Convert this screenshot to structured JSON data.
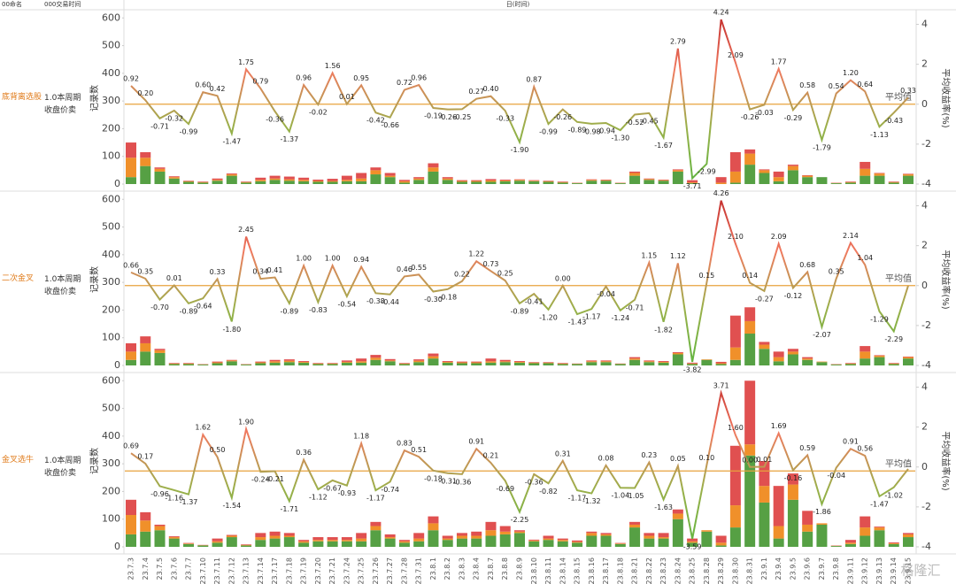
{
  "header": {
    "name_col": "00命名",
    "time_col": "000交易时间",
    "x_title": "日(时间)",
    "watermark": "格隆汇"
  },
  "chart_data": [
    {
      "type": "combo",
      "label": "底背离选股",
      "sublabel": [
        "1.0本周期",
        "收盘价卖"
      ],
      "y_label": "记录数",
      "y2_label": "平均收益率(%)",
      "ylim": [
        0,
        620
      ],
      "yticks": [
        0,
        100,
        200,
        300,
        400,
        500,
        600
      ],
      "y2lim": [
        -4,
        4.6
      ],
      "y2ticks": [
        -4,
        -2,
        0,
        2,
        4
      ],
      "ref_line": {
        "value": 0,
        "label": "平均值",
        "color": "#e8a33d"
      },
      "line_gradient": [
        "#c0282a",
        "#f07a60",
        "#9ab04a",
        "#5fb53f"
      ],
      "bars": [
        {
          "color": "#56a044",
          "values": [
            25,
            65,
            45,
            20,
            8,
            5,
            12,
            30,
            5,
            10,
            15,
            12,
            10,
            8,
            8,
            10,
            10,
            35,
            25,
            5,
            15,
            45,
            15,
            8,
            8,
            8,
            10,
            12,
            10,
            8,
            5,
            3,
            12,
            12,
            3,
            30,
            15,
            12,
            45,
            3,
            0,
            0,
            5,
            70,
            40,
            10,
            50,
            25,
            25,
            3,
            5,
            30,
            30,
            5,
            30
          ]
        },
        {
          "color": "#f0902a",
          "values": [
            70,
            30,
            10,
            5,
            2,
            2,
            3,
            5,
            2,
            5,
            5,
            5,
            5,
            3,
            3,
            5,
            10,
            15,
            5,
            5,
            5,
            15,
            5,
            3,
            3,
            5,
            3,
            3,
            2,
            2,
            2,
            1,
            3,
            2,
            1,
            10,
            3,
            2,
            5,
            3,
            0,
            5,
            40,
            40,
            10,
            15,
            15,
            5,
            0,
            1,
            2,
            25,
            8,
            2,
            5
          ]
        },
        {
          "color": "#e05050",
          "values": [
            55,
            20,
            5,
            3,
            2,
            2,
            5,
            3,
            2,
            8,
            10,
            10,
            8,
            5,
            8,
            15,
            20,
            10,
            10,
            5,
            5,
            15,
            5,
            3,
            3,
            5,
            3,
            2,
            2,
            2,
            2,
            1,
            2,
            2,
            1,
            5,
            2,
            2,
            3,
            8,
            0,
            20,
            70,
            15,
            3,
            20,
            5,
            2,
            0,
            1,
            2,
            25,
            2,
            2,
            2
          ]
        }
      ],
      "line": {
        "axis": "y2",
        "values": [
          0.92,
          0.2,
          -0.71,
          -0.32,
          -0.99,
          0.6,
          0.42,
          -1.47,
          1.75,
          0.79,
          -0.36,
          -1.37,
          0.96,
          -0.02,
          1.56,
          0.01,
          0.95,
          -0.42,
          -0.66,
          0.72,
          0.96,
          -0.19,
          -0.26,
          -0.25,
          0.27,
          0.4,
          -0.33,
          -1.9,
          0.87,
          -0.99,
          -0.26,
          -0.89,
          -0.98,
          -0.94,
          -1.3,
          -0.52,
          -0.45,
          -1.67,
          2.79,
          -3.71,
          -2.99,
          4.24,
          2.09,
          -0.26,
          -0.03,
          1.77,
          -0.29,
          0.58,
          -1.79,
          0.54,
          1.2,
          0.64,
          -1.13,
          -0.43,
          0.33
        ],
        "value_labels": [
          "0.92",
          "0.20",
          "-0.71",
          "-0.32",
          "-0.99",
          "0.60",
          "0.42",
          "-1.47",
          "1.75",
          "0.79",
          "-0.36",
          "-1.37",
          "0.96",
          "-0.02",
          "1.56",
          "0.01",
          "0.95",
          "-0.42",
          "-0.66",
          "0.72",
          "0.96",
          "-0.19",
          "-0.26",
          "-0.25",
          "0.27",
          "0.40",
          "-0.33",
          "-1.90",
          "0.87",
          "-0.99",
          "-0.26",
          "-0.89",
          "-0.98",
          "-0.94",
          "-1.30",
          "-0.52",
          "-0.45",
          "-1.67",
          "2.79",
          "-3.71",
          "-2.99",
          "4.24",
          "2.09",
          "-0.26",
          "-0.03",
          "1.77",
          "-0.29",
          "0.58",
          "-1.79",
          "0.54",
          "1.20",
          "0.64",
          "-1.13",
          "-0.43",
          "0.33"
        ]
      }
    },
    {
      "type": "combo",
      "label": "二次金叉",
      "sublabel": [
        "1.0本周期",
        "收盘价卖"
      ],
      "y_label": "记录数",
      "y2_label": "平均收益率(%)",
      "ylim": [
        0,
        620
      ],
      "yticks": [
        0,
        100,
        200,
        300,
        400,
        500,
        600
      ],
      "y2lim": [
        -4,
        4.6
      ],
      "y2ticks": [
        -4,
        -2,
        0,
        2,
        4
      ],
      "ref_line": {
        "value": 0,
        "label": "平均值",
        "color": "#e8a33d"
      },
      "line_gradient": [
        "#c0282a",
        "#f07a60",
        "#9ab04a",
        "#5fb53f"
      ],
      "bars": [
        {
          "color": "#56a044",
          "values": [
            20,
            50,
            45,
            5,
            5,
            3,
            8,
            15,
            3,
            8,
            10,
            12,
            10,
            5,
            5,
            10,
            10,
            20,
            15,
            5,
            12,
            25,
            10,
            8,
            8,
            10,
            12,
            10,
            8,
            8,
            5,
            5,
            12,
            12,
            5,
            20,
            12,
            10,
            40,
            5,
            20,
            5,
            20,
            115,
            60,
            15,
            40,
            20,
            12,
            3,
            5,
            25,
            30,
            5,
            25
          ]
        },
        {
          "color": "#f0902a",
          "values": [
            30,
            30,
            10,
            2,
            2,
            1,
            3,
            3,
            1,
            3,
            5,
            5,
            3,
            2,
            2,
            3,
            5,
            8,
            3,
            2,
            5,
            8,
            3,
            3,
            3,
            5,
            3,
            3,
            2,
            2,
            2,
            1,
            3,
            3,
            1,
            5,
            3,
            3,
            5,
            2,
            2,
            3,
            45,
            45,
            15,
            15,
            10,
            5,
            2,
            1,
            2,
            25,
            5,
            2,
            5
          ]
        },
        {
          "color": "#e05050",
          "values": [
            30,
            25,
            5,
            2,
            2,
            1,
            3,
            2,
            1,
            3,
            5,
            5,
            3,
            2,
            2,
            5,
            10,
            10,
            5,
            2,
            5,
            10,
            3,
            3,
            3,
            10,
            5,
            3,
            2,
            2,
            2,
            1,
            3,
            3,
            1,
            5,
            3,
            3,
            3,
            3,
            0,
            5,
            115,
            50,
            10,
            20,
            10,
            5,
            0,
            1,
            2,
            20,
            2,
            2,
            2
          ]
        }
      ],
      "line": {
        "axis": "y2",
        "values": [
          0.66,
          0.35,
          -0.7,
          0.01,
          -0.89,
          -0.64,
          0.33,
          -1.8,
          2.45,
          0.34,
          0.41,
          -0.89,
          1.0,
          -0.83,
          1.0,
          -0.54,
          0.94,
          -0.38,
          -0.44,
          0.46,
          0.55,
          -0.3,
          -0.18,
          0.22,
          1.22,
          0.73,
          0.25,
          -0.89,
          -0.41,
          -1.2,
          0.0,
          -1.43,
          -1.17,
          -0.04,
          -1.24,
          -0.71,
          1.15,
          -1.82,
          1.12,
          -3.82,
          0.15,
          4.26,
          2.1,
          0.14,
          -0.27,
          2.09,
          -0.12,
          0.68,
          -2.07,
          0.35,
          2.14,
          1.04,
          -1.29,
          -2.29,
          0
        ],
        "value_labels": [
          "0.66",
          "0.35",
          "-0.70",
          "0.01",
          "-0.89",
          "-0.64",
          "0.33",
          "-1.80",
          "2.45",
          "0.34",
          "0.41",
          "-0.89",
          "1.00",
          "-0.83",
          "1.00",
          "-0.54",
          "0.94",
          "-0.38",
          "-0.44",
          "0.46",
          "0.55",
          "-0.30",
          "-0.18",
          "0.22",
          "1.22",
          "0.73",
          "0.25",
          "-0.89",
          "-0.41",
          "-1.20",
          "0.00",
          "-1.43",
          "-1.17",
          "-0.04",
          "-1.24",
          "-0.71",
          "1.15",
          "-1.82",
          "1.12",
          "-3.82",
          "0.15",
          "4.26",
          "2.10",
          "0.14",
          "-0.27",
          "2.09",
          "-0.12",
          "0.68",
          "-2.07",
          "0.35",
          "2.14",
          "1.04",
          "-1.29",
          "-2.29",
          null
        ]
      }
    },
    {
      "type": "combo",
      "label": "金叉选牛",
      "sublabel": [
        "1.0本周期",
        "收盘价卖"
      ],
      "y_label": "记录数",
      "y2_label": "平均收益率(%)",
      "ylim": [
        0,
        620
      ],
      "yticks": [
        0,
        100,
        200,
        300,
        400,
        500,
        600
      ],
      "y2lim": [
        -4,
        4.6
      ],
      "y2ticks": [
        -4,
        -2,
        0,
        2,
        4
      ],
      "ref_line": {
        "value": -0.2,
        "label": "平均值",
        "color": "#e8a33d"
      },
      "line_gradient": [
        "#c0282a",
        "#f07a60",
        "#9ab04a",
        "#5fb53f"
      ],
      "categories": [
        "23.7.3",
        "23.7.4",
        "23.7.5",
        "23.7.6",
        "23.7.7",
        "23.7.10",
        "23.7.11",
        "23.7.12",
        "23.7.13",
        "23.7.14",
        "23.7.17",
        "23.7.18",
        "23.7.19",
        "23.7.20",
        "23.7.21",
        "23.7.24",
        "23.7.25",
        "23.7.26",
        "23.7.27",
        "23.7.28",
        "23.7.31",
        "23.8.1",
        "23.8.2",
        "23.8.3",
        "23.8.4",
        "23.8.7",
        "23.8.8",
        "23.8.9",
        "23.8.10",
        "23.8.11",
        "23.8.14",
        "23.8.15",
        "23.8.16",
        "23.8.17",
        "23.8.18",
        "23.8.21",
        "23.8.22",
        "23.8.23",
        "23.8.24",
        "23.8.25",
        "23.8.28",
        "23.8.29",
        "23.8.30",
        "23.8.31",
        "23.9.1",
        "23.9.4",
        "23.9.5",
        "23.9.6",
        "23.9.7",
        "23.9.8",
        "23.9.11",
        "23.9.12",
        "23.9.13",
        "23.9.14",
        "23.9.15"
      ],
      "bars": [
        {
          "color": "#56a044",
          "values": [
            45,
            55,
            60,
            30,
            10,
            5,
            15,
            35,
            5,
            25,
            30,
            35,
            15,
            20,
            20,
            20,
            20,
            60,
            30,
            15,
            20,
            60,
            25,
            30,
            30,
            40,
            45,
            50,
            20,
            25,
            20,
            15,
            40,
            40,
            10,
            70,
            30,
            30,
            100,
            15,
            55,
            5,
            70,
            330,
            160,
            30,
            170,
            55,
            80,
            3,
            10,
            40,
            60,
            10,
            35
          ]
        },
        {
          "color": "#f0902a",
          "values": [
            70,
            40,
            15,
            5,
            2,
            1,
            5,
            5,
            2,
            10,
            10,
            5,
            5,
            5,
            5,
            5,
            10,
            15,
            5,
            5,
            10,
            25,
            5,
            10,
            10,
            20,
            10,
            5,
            3,
            5,
            5,
            3,
            10,
            5,
            2,
            10,
            10,
            5,
            20,
            5,
            5,
            10,
            80,
            40,
            60,
            45,
            55,
            25,
            5,
            1,
            5,
            30,
            10,
            3,
            10
          ]
        },
        {
          "color": "#e05050",
          "values": [
            55,
            30,
            5,
            3,
            2,
            1,
            10,
            3,
            2,
            15,
            15,
            10,
            5,
            10,
            10,
            10,
            20,
            15,
            10,
            5,
            20,
            25,
            10,
            10,
            15,
            30,
            20,
            5,
            3,
            10,
            5,
            5,
            5,
            5,
            2,
            10,
            10,
            15,
            15,
            10,
            0,
            25,
            215,
            230,
            90,
            145,
            40,
            50,
            0,
            1,
            10,
            40,
            3,
            3,
            5
          ]
        }
      ],
      "line": {
        "axis": "y2",
        "values": [
          0.69,
          0.17,
          -0.96,
          -1.16,
          -1.37,
          1.62,
          0.5,
          -1.54,
          1.9,
          -0.24,
          -0.21,
          -1.71,
          0.36,
          -1.12,
          -0.67,
          -0.93,
          1.18,
          -1.17,
          -0.74,
          0.83,
          0.51,
          -0.18,
          -0.31,
          -0.36,
          0.91,
          0.21,
          -0.69,
          -2.25,
          -0.36,
          -0.82,
          0.31,
          -1.17,
          -1.32,
          0.08,
          -1.04,
          -1.05,
          0.23,
          -1.63,
          0.05,
          -3.59,
          0.1,
          3.71,
          1.6,
          0.0,
          0.01,
          1.69,
          -0.16,
          0.59,
          -1.86,
          -0.04,
          0.91,
          0.56,
          -1.47,
          -1.02,
          -0.1
        ],
        "value_labels": [
          "0.69",
          "0.17",
          "-0.96",
          "-1.16",
          "-1.37",
          "1.62",
          "0.50",
          "-1.54",
          "1.90",
          "-0.24",
          "-0.21",
          "-1.71",
          "0.36",
          "-1.12",
          "-0.67",
          "-0.93",
          "1.18",
          "-1.17",
          "-0.74",
          "0.83",
          "0.51",
          "-0.18",
          "-0.31",
          "-0.36",
          "0.91",
          "0.21",
          "-0.69",
          "-2.25",
          "-0.36",
          "-0.82",
          "0.31",
          "-1.17",
          "-1.32",
          "0.08",
          "-1.04",
          "-1.05",
          "0.23",
          "-1.63",
          "0.05",
          "-3.59",
          "0.10",
          "3.71",
          "1.60",
          "0.00",
          "0.01",
          "1.69",
          "-0.16",
          "0.59",
          "-1.86",
          "-0.04",
          "0.91",
          "0.56",
          "-1.47",
          "-1.02",
          null
        ]
      }
    }
  ]
}
